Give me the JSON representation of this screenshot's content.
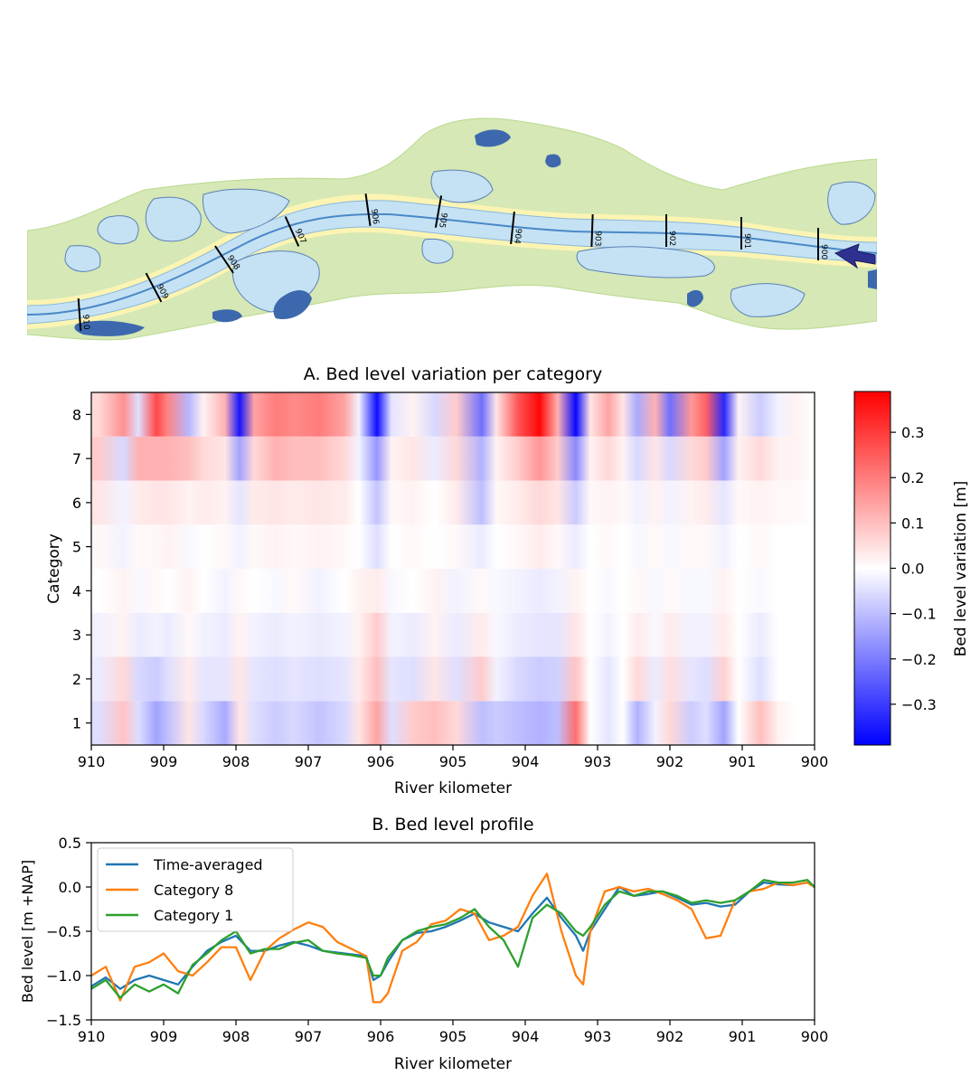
{
  "figure": {
    "map": {
      "km_markers": [
        "910",
        "909",
        "908",
        "907",
        "906",
        "905",
        "904",
        "903",
        "902",
        "901",
        "900"
      ],
      "colors": {
        "floodplain": "#d5e8b5",
        "water": "#c4e2f4",
        "deep_water": "#3d68ad",
        "groyne_fields": "#fbf4b2",
        "main_channel": "#4a88c6",
        "arrow": "#2e3190"
      }
    },
    "heatmap": {
      "title": "A. Bed level variation per category",
      "xlabel": "River kilometer",
      "ylabel": "Category",
      "colorbar_label": "Bed level variation [m]"
    },
    "profile": {
      "title": "B. Bed level profile",
      "xlabel": "River kilometer",
      "ylabel": "Bed level [m +NAP]"
    }
  },
  "chart_data": [
    {
      "type": "heatmap",
      "title": "A. Bed level variation per category",
      "xlabel": "River kilometer",
      "ylabel": "Category",
      "x_range": [
        910,
        900
      ],
      "xticks": [
        910,
        909,
        908,
        907,
        906,
        905,
        904,
        903,
        902,
        901,
        900
      ],
      "categories": [
        1,
        2,
        3,
        4,
        5,
        6,
        7,
        8
      ],
      "colormap": "bwr",
      "vlim": [
        -0.39,
        0.39
      ],
      "colorbar_ticks": [
        0.3,
        0.2,
        0.1,
        0.0,
        -0.1,
        -0.2,
        -0.3
      ],
      "colorbar_label": "Bed level variation [m]",
      "x": [
        909.9,
        909.55,
        909.35,
        909.1,
        908.95,
        908.65,
        908.45,
        908.15,
        907.95,
        907.75,
        907.45,
        907.2,
        906.85,
        906.5,
        906.3,
        906.05,
        905.85,
        905.55,
        905.25,
        904.95,
        904.6,
        904.4,
        904.1,
        903.8,
        903.55,
        903.3,
        903.1,
        902.85,
        902.65,
        902.45,
        902.2,
        902.0,
        901.7,
        901.5,
        901.25,
        901.05,
        900.75,
        900.5,
        900.25,
        900.0
      ],
      "rows": {
        "8": [
          0.06,
          0.17,
          -0.05,
          0.28,
          0.19,
          -0.11,
          0.02,
          0.12,
          -0.36,
          0.14,
          0.2,
          0.18,
          0.2,
          0.14,
          -0.02,
          -0.37,
          -0.04,
          0.02,
          -0.06,
          0.08,
          -0.22,
          0.04,
          0.26,
          0.38,
          0.12,
          -0.38,
          0.04,
          0.14,
          0.04,
          -0.13,
          0.12,
          -0.22,
          0.16,
          0.24,
          -0.33,
          0.02,
          -0.08,
          -0.02,
          0.02,
          0.0
        ],
        "7": [
          0.08,
          -0.06,
          0.12,
          0.12,
          0.12,
          0.1,
          0.06,
          0.04,
          -0.14,
          0.06,
          0.12,
          0.1,
          0.1,
          0.06,
          -0.02,
          -0.16,
          0.02,
          0.04,
          -0.03,
          0.06,
          -0.12,
          0.02,
          0.08,
          0.16,
          0.08,
          -0.18,
          0.02,
          0.06,
          0.02,
          -0.06,
          0.04,
          -0.06,
          0.06,
          0.08,
          -0.14,
          0.02,
          0.06,
          0.02,
          0.02,
          0.0
        ],
        "6": [
          0.04,
          -0.02,
          0.03,
          0.04,
          0.04,
          0.02,
          0.03,
          0.02,
          -0.04,
          0.03,
          0.04,
          0.03,
          0.04,
          0.03,
          0.0,
          -0.09,
          0.01,
          0.02,
          0.0,
          0.03,
          -0.1,
          0.01,
          0.03,
          0.06,
          0.04,
          -0.08,
          0.01,
          0.02,
          0.01,
          -0.02,
          0.02,
          -0.02,
          0.02,
          0.03,
          -0.04,
          0.01,
          0.02,
          0.01,
          0.01,
          0.0
        ],
        "5": [
          0.01,
          -0.02,
          0.01,
          0.01,
          0.02,
          -0.01,
          0.0,
          0.01,
          -0.02,
          0.01,
          0.02,
          0.01,
          0.02,
          0.01,
          0.0,
          -0.05,
          0.0,
          0.01,
          0.0,
          0.01,
          -0.03,
          0.0,
          0.01,
          0.03,
          0.01,
          -0.03,
          0.0,
          0.01,
          0.0,
          -0.01,
          0.01,
          -0.01,
          0.01,
          0.01,
          -0.02,
          0.0,
          0.01,
          0.0,
          0.0,
          0.0
        ],
        "4": [
          0.0,
          0.02,
          -0.01,
          0.01,
          0.0,
          0.02,
          0.0,
          -0.02,
          0.01,
          0.0,
          -0.01,
          0.01,
          -0.02,
          0.0,
          0.02,
          0.03,
          -0.01,
          0.0,
          0.02,
          -0.02,
          0.01,
          -0.01,
          -0.02,
          -0.03,
          -0.02,
          0.02,
          0.0,
          -0.01,
          0.0,
          0.01,
          -0.01,
          0.01,
          -0.01,
          -0.01,
          0.02,
          0.0,
          -0.01,
          0.0,
          0.0,
          0.0
        ],
        "3": [
          -0.02,
          0.02,
          -0.03,
          -0.02,
          -0.03,
          0.01,
          -0.02,
          -0.03,
          0.02,
          -0.02,
          -0.03,
          -0.02,
          -0.03,
          -0.02,
          0.02,
          0.08,
          -0.02,
          -0.03,
          0.02,
          -0.03,
          0.03,
          -0.01,
          -0.03,
          -0.04,
          -0.04,
          0.04,
          0.0,
          -0.02,
          0.0,
          0.03,
          -0.01,
          0.03,
          -0.02,
          -0.02,
          0.03,
          0.0,
          -0.03,
          0.0,
          0.0,
          0.0
        ],
        "2": [
          -0.03,
          0.06,
          -0.06,
          -0.08,
          -0.05,
          0.03,
          -0.04,
          -0.04,
          0.04,
          -0.04,
          -0.05,
          -0.04,
          -0.05,
          -0.04,
          0.03,
          0.1,
          -0.04,
          -0.05,
          0.04,
          -0.05,
          0.08,
          -0.02,
          -0.06,
          -0.08,
          -0.07,
          0.09,
          0.0,
          -0.04,
          0.0,
          0.06,
          -0.03,
          0.05,
          -0.04,
          -0.05,
          0.07,
          0.0,
          -0.05,
          0.0,
          0.0,
          0.0
        ],
        "1": [
          -0.05,
          0.09,
          -0.05,
          -0.14,
          -0.1,
          0.04,
          -0.06,
          -0.13,
          0.04,
          -0.05,
          -0.08,
          -0.06,
          -0.09,
          -0.06,
          0.04,
          0.14,
          -0.05,
          0.08,
          0.1,
          0.06,
          -0.1,
          -0.08,
          -0.1,
          -0.12,
          -0.1,
          0.22,
          0.0,
          -0.04,
          0.0,
          -0.12,
          -0.02,
          0.06,
          -0.08,
          -0.05,
          -0.14,
          0.0,
          0.1,
          0.02,
          0.0,
          0.0
        ]
      }
    },
    {
      "type": "line",
      "title": "B. Bed level profile",
      "xlabel": "River kilometer",
      "ylabel": "Bed level [m +NAP]",
      "xlim": [
        910,
        900
      ],
      "ylim": [
        -1.5,
        0.5
      ],
      "xticks": [
        910,
        909,
        908,
        907,
        906,
        905,
        904,
        903,
        902,
        901,
        900
      ],
      "yticks": [
        0.5,
        0.0,
        -0.5,
        -1.0,
        -1.5
      ],
      "legend_position": "upper-left",
      "x": [
        910.0,
        909.8,
        909.6,
        909.4,
        909.2,
        909.0,
        908.8,
        908.6,
        908.4,
        908.2,
        908.0,
        907.8,
        907.6,
        907.4,
        907.2,
        907.0,
        906.8,
        906.6,
        906.4,
        906.2,
        906.1,
        906.0,
        905.9,
        905.7,
        905.5,
        905.3,
        905.1,
        904.9,
        904.7,
        904.5,
        904.3,
        904.1,
        903.9,
        903.7,
        903.5,
        903.3,
        903.2,
        903.1,
        902.9,
        902.7,
        902.5,
        902.3,
        902.1,
        901.9,
        901.7,
        901.5,
        901.3,
        901.1,
        900.9,
        900.7,
        900.5,
        900.3,
        900.1,
        900.0
      ],
      "series": [
        {
          "name": "Time-averaged",
          "color": "#1f77b4",
          "values": [
            -1.12,
            -1.02,
            -1.15,
            -1.05,
            -1.0,
            -1.05,
            -1.1,
            -0.9,
            -0.72,
            -0.62,
            -0.55,
            -0.72,
            -0.72,
            -0.66,
            -0.62,
            -0.66,
            -0.72,
            -0.74,
            -0.76,
            -0.78,
            -1.05,
            -1.0,
            -0.85,
            -0.6,
            -0.52,
            -0.5,
            -0.45,
            -0.38,
            -0.3,
            -0.4,
            -0.45,
            -0.5,
            -0.3,
            -0.12,
            -0.35,
            -0.55,
            -0.72,
            -0.5,
            -0.25,
            0.0,
            -0.1,
            -0.08,
            -0.05,
            -0.12,
            -0.2,
            -0.18,
            -0.22,
            -0.2,
            -0.05,
            0.05,
            0.03,
            0.02,
            0.05,
            0.0
          ]
        },
        {
          "name": "Category 8",
          "color": "#ff7f0e",
          "values": [
            -1.0,
            -0.9,
            -1.28,
            -0.9,
            -0.85,
            -0.75,
            -0.95,
            -1.0,
            -0.85,
            -0.68,
            -0.68,
            -1.05,
            -0.72,
            -0.58,
            -0.48,
            -0.4,
            -0.45,
            -0.62,
            -0.7,
            -0.78,
            -1.3,
            -1.3,
            -1.2,
            -0.72,
            -0.62,
            -0.42,
            -0.38,
            -0.25,
            -0.3,
            -0.6,
            -0.55,
            -0.45,
            -0.1,
            0.15,
            -0.5,
            -1.0,
            -1.1,
            -0.5,
            -0.05,
            0.0,
            -0.05,
            -0.02,
            -0.08,
            -0.15,
            -0.25,
            -0.58,
            -0.55,
            -0.15,
            -0.05,
            -0.02,
            0.05,
            0.02,
            0.05,
            0.0
          ]
        },
        {
          "name": "Category 1",
          "color": "#2ca02c",
          "values": [
            -1.15,
            -1.05,
            -1.25,
            -1.1,
            -1.18,
            -1.1,
            -1.2,
            -0.88,
            -0.75,
            -0.6,
            -0.5,
            -0.75,
            -0.7,
            -0.7,
            -0.63,
            -0.6,
            -0.72,
            -0.75,
            -0.77,
            -0.8,
            -1.0,
            -1.0,
            -0.8,
            -0.6,
            -0.5,
            -0.45,
            -0.42,
            -0.35,
            -0.25,
            -0.45,
            -0.6,
            -0.9,
            -0.35,
            -0.2,
            -0.3,
            -0.5,
            -0.55,
            -0.45,
            -0.2,
            -0.05,
            -0.1,
            -0.05,
            -0.05,
            -0.1,
            -0.18,
            -0.15,
            -0.18,
            -0.15,
            -0.05,
            0.08,
            0.05,
            0.05,
            0.08,
            0.0
          ]
        }
      ]
    }
  ]
}
